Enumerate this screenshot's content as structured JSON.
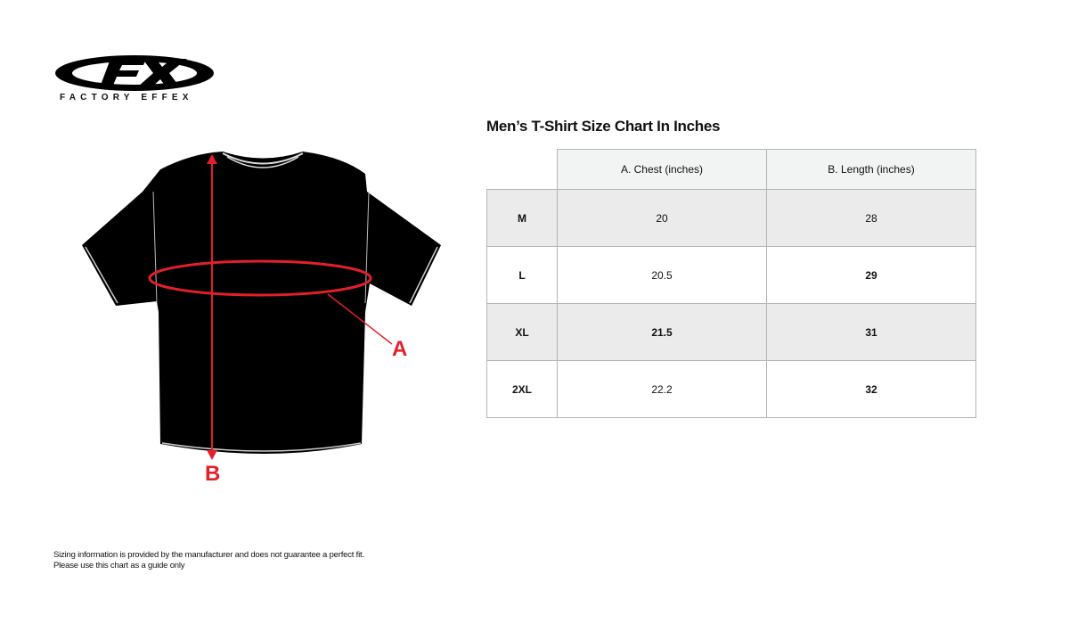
{
  "brand": {
    "logo_text": "FX",
    "name": "FACTORY EFFEX"
  },
  "diagram": {
    "label_a": "A",
    "label_b": "B",
    "accent_color": "#e3202a"
  },
  "title": "Men’s T-Shirt Size Chart In Inches",
  "table": {
    "headers": [
      "",
      "A. Chest (inches)",
      "B. Length (inches)"
    ],
    "rows": [
      {
        "size": "M",
        "chest": "20",
        "length": "28"
      },
      {
        "size": "L",
        "chest": "20.5",
        "length": "29"
      },
      {
        "size": "XL",
        "chest": "21.5",
        "length": "31"
      },
      {
        "size": "2XL",
        "chest": "22.2",
        "length": "32"
      }
    ]
  },
  "footer": {
    "line1": "Sizing information is provided by the manufacturer and does not guarantee a perfect fit.",
    "line2": "Please use this chart as a guide only"
  }
}
